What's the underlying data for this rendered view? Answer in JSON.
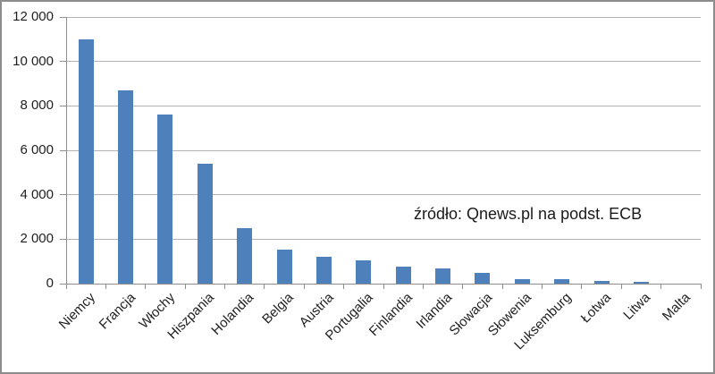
{
  "chart_data": {
    "type": "bar",
    "title": "",
    "xlabel": "",
    "ylabel": "",
    "categories": [
      "Niemcy",
      "Francja",
      "Włochy",
      "Hiszpania",
      "Holandia",
      "Belgia",
      "Austria",
      "Portugalia",
      "Finlandia",
      "Irlandia",
      "Słowacja",
      "Słowenia",
      "Luksemburg",
      "Łotwa",
      "Litwa",
      "Malta"
    ],
    "values": [
      11000,
      8700,
      7600,
      5400,
      2500,
      1550,
      1200,
      1050,
      760,
      700,
      500,
      220,
      200,
      110,
      90,
      0
    ],
    "ylim": [
      0,
      12000
    ],
    "ytick_step": 2000,
    "ytick_labels": [
      "0",
      "2 000",
      "4 000",
      "6 000",
      "8 000",
      "10 000",
      "12 000"
    ],
    "grid": true,
    "legend_position": "none",
    "annotation": "źródło: Qnews.pl na podst. ECB",
    "colors": {
      "bar": "#4e80bc",
      "gridline": "#b3b3b3",
      "axis": "#8e8e8e",
      "text": "#1f1f1f"
    }
  }
}
